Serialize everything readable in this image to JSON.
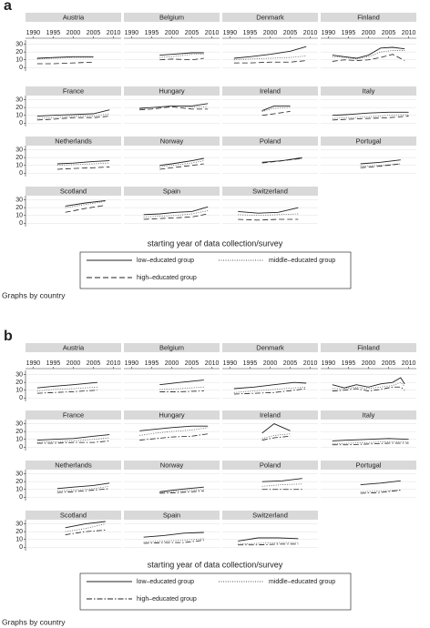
{
  "chart_data": [
    {
      "type": "line",
      "panel_label": "a",
      "xlabel": "starting year of data collection/survey",
      "note": "Graphs by country",
      "xlim": [
        1989,
        2011
      ],
      "xticks": [
        1990,
        1995,
        2000,
        2005,
        2010
      ],
      "ylim": [
        -2,
        33
      ],
      "yticks": [
        0,
        10,
        20,
        30
      ],
      "grid": true,
      "series": [
        {
          "name": "low–educated group",
          "color": "#222222",
          "dash": "solid"
        },
        {
          "name": "middle–educated group",
          "color": "#555555",
          "dash": "dotted"
        },
        {
          "name": "high–educated group",
          "color": "#222222",
          "dash": "longdash"
        }
      ],
      "facets": [
        {
          "title": "Austria",
          "x": [
            1991,
            1995,
            2000,
            2005
          ],
          "values": [
            [
              12,
              13,
              14,
              14
            ],
            [
              11,
              12,
              13,
              13
            ],
            [
              5,
              5,
              6,
              7
            ]
          ]
        },
        {
          "title": "Belgium",
          "x": [
            1997,
            2000,
            2005,
            2008
          ],
          "values": [
            [
              16,
              17,
              19,
              19
            ],
            [
              13,
              14,
              17,
              17
            ],
            [
              10,
              11,
              10,
              12
            ]
          ]
        },
        {
          "title": "Denmark",
          "x": [
            1991,
            1995,
            2000,
            2005,
            2009
          ],
          "values": [
            [
              12,
              14,
              17,
              21,
              27
            ],
            [
              10,
              11,
              12,
              13,
              15
            ],
            [
              6,
              6,
              7,
              7,
              9
            ]
          ]
        },
        {
          "title": "Finland",
          "x": [
            1991,
            1994,
            1997,
            2000,
            2003,
            2006,
            2009
          ],
          "values": [
            [
              16,
              14,
              12,
              16,
              25,
              26,
              24
            ],
            [
              14,
              13,
              11,
              14,
              20,
              22,
              22
            ],
            [
              8,
              10,
              9,
              10,
              13,
              17,
              9
            ]
          ]
        },
        {
          "title": "France",
          "x": [
            1991,
            1995,
            2000,
            2005,
            2009
          ],
          "values": [
            [
              9,
              10,
              11,
              12,
              17
            ],
            [
              6,
              7,
              9,
              9,
              12
            ],
            [
              4,
              5,
              7,
              7,
              9
            ]
          ]
        },
        {
          "title": "Hungary",
          "x": [
            1992,
            1995,
            2000,
            2005,
            2009
          ],
          "values": [
            [
              19,
              20,
              22,
              22,
              25
            ],
            [
              18,
              20,
              22,
              21,
              21
            ],
            [
              17,
              18,
              21,
              18,
              18
            ]
          ]
        },
        {
          "title": "Ireland",
          "x": [
            1998,
            2001,
            2005
          ],
          "values": [
            [
              16,
              22,
              22
            ],
            [
              15,
              19,
              20
            ],
            [
              10,
              12,
              15
            ]
          ]
        },
        {
          "title": "Italy",
          "x": [
            1991,
            1995,
            2000,
            2005,
            2010
          ],
          "values": [
            [
              10,
              11,
              13,
              14,
              14
            ],
            [
              6,
              7,
              8,
              10,
              11
            ],
            [
              4,
              5,
              6,
              7,
              9
            ]
          ]
        },
        {
          "title": "Netherlands",
          "x": [
            1996,
            2000,
            2005,
            2009
          ],
          "values": [
            [
              12,
              13,
              15,
              16
            ],
            [
              10,
              11,
              12,
              13
            ],
            [
              5,
              6,
              7,
              8
            ]
          ]
        },
        {
          "title": "Norway",
          "x": [
            1997,
            2000,
            2005,
            2008
          ],
          "values": [
            [
              10,
              12,
              16,
              19
            ],
            [
              8,
              10,
              13,
              16
            ],
            [
              5,
              7,
              10,
              12
            ]
          ]
        },
        {
          "title": "Poland",
          "x": [
            1998,
            2003,
            2008
          ],
          "values": [
            [
              14,
              16,
              20
            ],
            [
              14,
              16,
              19
            ],
            [
              13,
              16,
              19
            ]
          ]
        },
        {
          "title": "Portugal",
          "x": [
            1998,
            2003,
            2008
          ],
          "values": [
            [
              12,
              14,
              17
            ],
            [
              9,
              10,
              12
            ],
            [
              7,
              9,
              12
            ]
          ]
        },
        {
          "title": "Scotland",
          "x": [
            1998,
            2003,
            2008
          ],
          "values": [
            [
              22,
              26,
              29
            ],
            [
              20,
              24,
              28
            ],
            [
              14,
              19,
              23
            ]
          ]
        },
        {
          "title": "Spain",
          "x": [
            1993,
            1997,
            2001,
            2005,
            2009
          ],
          "values": [
            [
              11,
              12,
              14,
              15,
              21
            ],
            [
              8,
              9,
              10,
              12,
              16
            ],
            [
              5,
              6,
              7,
              8,
              12
            ]
          ]
        },
        {
          "title": "Switzerland",
          "x": [
            1992,
            1997,
            2002,
            2007
          ],
          "values": [
            [
              15,
              13,
              14,
              20
            ],
            [
              11,
              10,
              11,
              12
            ],
            [
              5,
              4,
              5,
              5
            ]
          ]
        }
      ]
    },
    {
      "type": "line",
      "panel_label": "b",
      "xlabel": "starting year of data collection/survey",
      "note": "Graphs by country",
      "xlim": [
        1989,
        2011
      ],
      "xticks": [
        1990,
        1995,
        2000,
        2005,
        2010
      ],
      "ylim": [
        -2,
        33
      ],
      "yticks": [
        0,
        10,
        20,
        30
      ],
      "grid": true,
      "series": [
        {
          "name": "low–educated group",
          "color": "#222222",
          "dash": "solid"
        },
        {
          "name": "middle–educated group",
          "color": "#555555",
          "dash": "dotted"
        },
        {
          "name": "high–educated group",
          "color": "#222222",
          "dash": "dashdot"
        }
      ],
      "facets": [
        {
          "title": "Austria",
          "x": [
            1991,
            1995,
            2000,
            2006
          ],
          "values": [
            [
              13,
              15,
              17,
              20
            ],
            [
              9,
              11,
              12,
              14
            ],
            [
              6,
              7,
              8,
              10
            ]
          ]
        },
        {
          "title": "Belgium",
          "x": [
            1997,
            2002,
            2008
          ],
          "values": [
            [
              17,
              20,
              23
            ],
            [
              11,
              12,
              14
            ],
            [
              8,
              8,
              9
            ]
          ]
        },
        {
          "title": "Denmark",
          "x": [
            1991,
            1996,
            2001,
            2006,
            2009
          ],
          "values": [
            [
              12,
              14,
              17,
              20,
              19
            ],
            [
              7,
              9,
              11,
              13,
              14
            ],
            [
              5,
              6,
              7,
              10,
              12
            ]
          ]
        },
        {
          "title": "Finland",
          "x": [
            1991,
            1994,
            1997,
            2000,
            2003,
            2006,
            2008,
            2009
          ],
          "values": [
            [
              17,
              13,
              17,
              14,
              18,
              20,
              26,
              18
            ],
            [
              12,
              12,
              14,
              12,
              14,
              16,
              20,
              15
            ],
            [
              9,
              10,
              12,
              9,
              11,
              14,
              14,
              10
            ]
          ]
        },
        {
          "title": "France",
          "x": [
            1991,
            1995,
            2000,
            2005,
            2009
          ],
          "values": [
            [
              9,
              10,
              11,
              14,
              16
            ],
            [
              6,
              7,
              8,
              10,
              12
            ],
            [
              5,
              5,
              6,
              6,
              8
            ]
          ]
        },
        {
          "title": "Hungary",
          "x": [
            1992,
            1996,
            2000,
            2005,
            2009
          ],
          "values": [
            [
              21,
              23,
              25,
              27,
              27
            ],
            [
              15,
              18,
              20,
              22,
              25
            ],
            [
              9,
              11,
              13,
              14,
              17
            ]
          ]
        },
        {
          "title": "Ireland",
          "x": [
            1998,
            2001,
            2005
          ],
          "values": [
            [
              18,
              30,
              21
            ],
            [
              11,
              15,
              17
            ],
            [
              9,
              12,
              14
            ]
          ]
        },
        {
          "title": "Italy",
          "x": [
            1991,
            1995,
            2000,
            2005,
            2010
          ],
          "values": [
            [
              8,
              9,
              10,
              11,
              10
            ],
            [
              4,
              5,
              6,
              7,
              7
            ],
            [
              3,
              3,
              4,
              5,
              5
            ]
          ]
        },
        {
          "title": "Netherlands",
          "x": [
            1996,
            2000,
            2005,
            2009
          ],
          "values": [
            [
              11,
              13,
              15,
              18
            ],
            [
              8,
              9,
              11,
              14
            ],
            [
              6,
              7,
              9,
              11
            ]
          ]
        },
        {
          "title": "Norway",
          "x": [
            1997,
            2002,
            2008
          ],
          "values": [
            [
              7,
              10,
              13
            ],
            [
              6,
              8,
              10
            ],
            [
              5,
              6,
              8
            ]
          ]
        },
        {
          "title": "Poland",
          "x": [
            1998,
            2003,
            2008
          ],
          "values": [
            [
              20,
              21,
              24
            ],
            [
              14,
              16,
              17
            ],
            [
              10,
              10,
              10
            ]
          ]
        },
        {
          "title": "Portugal",
          "x": [
            1998,
            2003,
            2008
          ],
          "values": [
            [
              16,
              18,
              21
            ],
            [
              7,
              8,
              9
            ],
            [
              5,
              6,
              9
            ]
          ]
        },
        {
          "title": "Scotland",
          "x": [
            1998,
            2003,
            2008
          ],
          "values": [
            [
              25,
              30,
              33
            ],
            [
              20,
              24,
              30
            ],
            [
              16,
              20,
              22
            ]
          ]
        },
        {
          "title": "Spain",
          "x": [
            1993,
            1998,
            2003,
            2008
          ],
          "values": [
            [
              13,
              15,
              18,
              19
            ],
            [
              7,
              8,
              9,
              11
            ],
            [
              5,
              6,
              6,
              9
            ]
          ]
        },
        {
          "title": "Switzerland",
          "x": [
            1992,
            1997,
            2002,
            2007
          ],
          "values": [
            [
              8,
              12,
              12,
              11
            ],
            [
              4,
              5,
              6,
              6
            ],
            [
              3,
              3,
              4,
              4
            ]
          ]
        }
      ]
    }
  ]
}
